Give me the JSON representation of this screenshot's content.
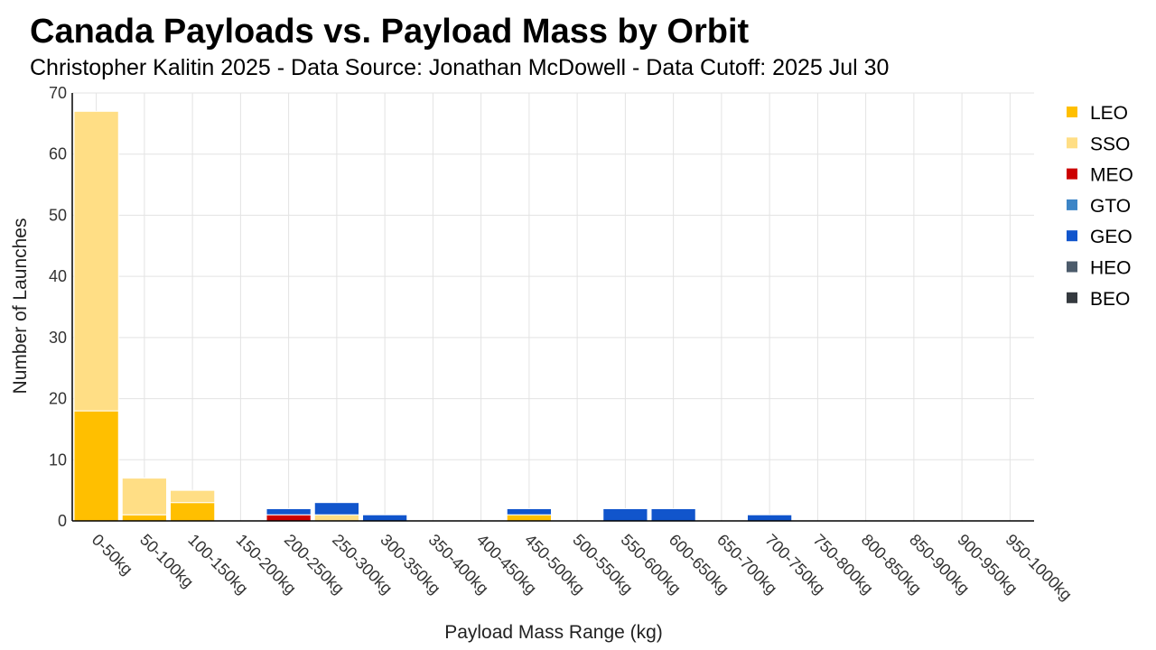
{
  "chart_data": {
    "type": "bar",
    "stacked": true,
    "title": "Canada Payloads vs. Payload Mass by Orbit",
    "subtitle": "Christopher Kalitin 2025 - Data Source: Jonathan McDowell - Data Cutoff: 2025 Jul 30",
    "xlabel": "Payload Mass Range (kg)",
    "ylabel": "Number of Launches",
    "ylim": [
      0,
      70
    ],
    "yticks": [
      0,
      10,
      20,
      30,
      40,
      50,
      60,
      70
    ],
    "grid": true,
    "legend_position": "right",
    "categories": [
      "0-50kg",
      "50-100kg",
      "100-150kg",
      "150-200kg",
      "200-250kg",
      "250-300kg",
      "300-350kg",
      "350-400kg",
      "400-450kg",
      "450-500kg",
      "500-550kg",
      "550-600kg",
      "600-650kg",
      "650-700kg",
      "700-750kg",
      "750-800kg",
      "800-850kg",
      "850-900kg",
      "900-950kg",
      "950-1000kg"
    ],
    "series": [
      {
        "name": "LEO",
        "color": "#FFBF00",
        "values": [
          18,
          1,
          3,
          0,
          0,
          0,
          0,
          0,
          0,
          1,
          0,
          0,
          0,
          0,
          0,
          0,
          0,
          0,
          0,
          0
        ]
      },
      {
        "name": "SSO",
        "color": "#FFDE85",
        "values": [
          49,
          6,
          2,
          0,
          0,
          1,
          0,
          0,
          0,
          0,
          0,
          0,
          0,
          0,
          0,
          0,
          0,
          0,
          0,
          0
        ]
      },
      {
        "name": "MEO",
        "color": "#CC0000",
        "values": [
          0,
          0,
          0,
          0,
          1,
          0,
          0,
          0,
          0,
          0,
          0,
          0,
          0,
          0,
          0,
          0,
          0,
          0,
          0,
          0
        ]
      },
      {
        "name": "GTO",
        "color": "#3D85C6",
        "values": [
          0,
          0,
          0,
          0,
          0,
          0,
          0,
          0,
          0,
          0,
          0,
          0,
          0,
          0,
          0,
          0,
          0,
          0,
          0,
          0
        ]
      },
      {
        "name": "GEO",
        "color": "#1155CC",
        "values": [
          0,
          0,
          0,
          0,
          1,
          2,
          1,
          0,
          0,
          1,
          0,
          2,
          2,
          0,
          1,
          0,
          0,
          0,
          0,
          0
        ]
      },
      {
        "name": "HEO",
        "color": "#4C5B6B",
        "values": [
          0,
          0,
          0,
          0,
          0,
          0,
          0,
          0,
          0,
          0,
          0,
          0,
          0,
          0,
          0,
          0,
          0,
          0,
          0,
          0
        ]
      },
      {
        "name": "BEO",
        "color": "#353A3F",
        "values": [
          0,
          0,
          0,
          0,
          0,
          0,
          0,
          0,
          0,
          0,
          0,
          0,
          0,
          0,
          0,
          0,
          0,
          0,
          0,
          0
        ]
      }
    ]
  }
}
